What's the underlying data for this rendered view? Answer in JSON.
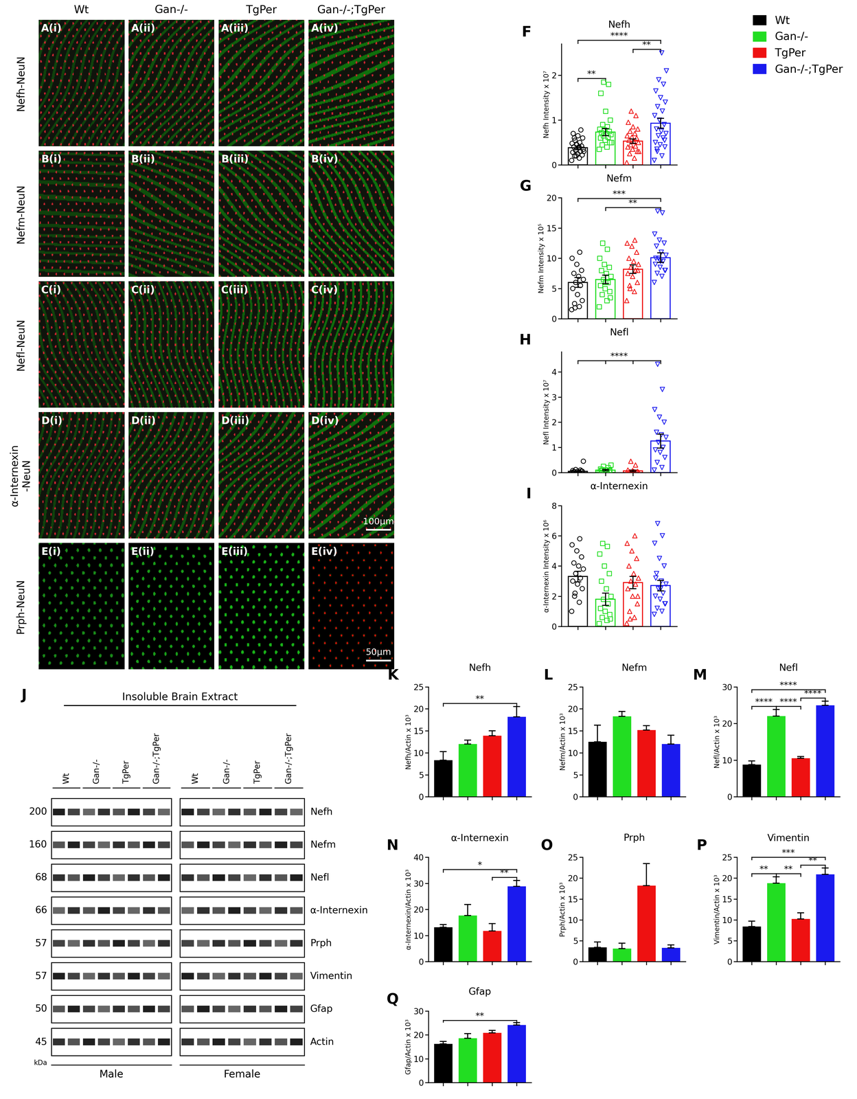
{
  "legend": "upper right",
  "legend_entries": [
    {
      "name": "Wt",
      "color": "#000000"
    },
    {
      "name": "Gan-/-",
      "color": "#22dd22"
    },
    {
      "name": "TgPer",
      "color": "#ee1111"
    },
    {
      "name": "Gan-/-;TgPer",
      "color": "#1a1aee"
    }
  ],
  "micrographs": {
    "columns": [
      "Wt",
      "Gan-/-",
      "TgPer",
      "Gan-/-;TgPer"
    ],
    "rows": [
      "Nefh-NeuN",
      "Nefm-NeuN",
      "Nefl-NeuN",
      "α-Internexin\n-NeuN",
      "Prph-NeuN"
    ],
    "panels": [
      [
        "A(i)",
        "A(ii)",
        "A(iii)",
        "A(iv)"
      ],
      [
        "B(i)",
        "B(ii)",
        "B(iii)",
        "B(iv)"
      ],
      [
        "C(i)",
        "C(ii)",
        "C(iii)",
        "C(iv)"
      ],
      [
        "D(i)",
        "D(ii)",
        "D(iii)",
        "D(iv)"
      ],
      [
        "E(i)",
        "E(ii)",
        "E(iii)",
        "E(iv)"
      ]
    ],
    "scale_bars": [
      {
        "panel": "D(iv)",
        "label": "100μm"
      },
      {
        "panel": "E(iv)",
        "label": "50μm"
      }
    ]
  },
  "blot": {
    "panel": "J",
    "title": "Insoluble Brain Extract",
    "sections": [
      {
        "name": "Male",
        "lanes": [
          {
            "label": "Wt",
            "count": 2
          },
          {
            "label": "Gan-/-",
            "count": 2
          },
          {
            "label": "TgPer",
            "count": 2
          },
          {
            "label": "Gan-/-;TgPer",
            "count": 2
          }
        ]
      },
      {
        "name": "Female",
        "lanes": [
          {
            "label": "Wt",
            "count": 2
          },
          {
            "label": "Gan-/-",
            "count": 2
          },
          {
            "label": "TgPer",
            "count": 2
          },
          {
            "label": "Gan-/-;TgPer",
            "count": 2
          }
        ]
      }
    ],
    "rows": [
      {
        "protein": "Nefh",
        "kDa": 200
      },
      {
        "protein": "Nefm",
        "kDa": 160
      },
      {
        "protein": "Nefl",
        "kDa": 68
      },
      {
        "protein": "α-Internexin",
        "kDa": 66
      },
      {
        "protein": "Prph",
        "kDa": 57
      },
      {
        "protein": "Vimentin",
        "kDa": 57
      },
      {
        "protein": "Gfap",
        "kDa": 50
      },
      {
        "protein": "Actin",
        "kDa": 45
      }
    ],
    "unit": "kDa"
  },
  "chart_data": [
    {
      "panel": "F",
      "type": "bar",
      "title": "Nefh",
      "y_label": "Nefh Intensity x 10⁷",
      "categories": [
        "Wt",
        "Gan-/-",
        "TgPer",
        "Gan-/-;TgPer"
      ],
      "colors": [
        "#000000",
        "#22dd22",
        "#ee1111",
        "#1a1aee"
      ],
      "values": [
        0.38,
        0.73,
        0.53,
        0.93
      ],
      "errors": [
        0.04,
        0.08,
        0.05,
        0.11
      ],
      "points": [
        [
          0.1,
          0.15,
          0.2,
          0.22,
          0.25,
          0.28,
          0.3,
          0.32,
          0.35,
          0.38,
          0.4,
          0.42,
          0.45,
          0.48,
          0.5,
          0.55,
          0.6,
          0.65,
          0.7,
          0.78,
          0.2,
          0.3,
          0.4,
          0.6
        ],
        [
          0.35,
          0.4,
          0.45,
          0.5,
          0.55,
          0.6,
          0.62,
          0.65,
          0.68,
          0.7,
          0.72,
          0.75,
          0.78,
          0.8,
          0.85,
          0.9,
          1.0,
          1.2,
          1.6,
          1.8,
          1.85,
          0.5
        ],
        [
          0.05,
          0.15,
          0.25,
          0.3,
          0.35,
          0.4,
          0.42,
          0.45,
          0.5,
          0.52,
          0.55,
          0.6,
          0.62,
          0.65,
          0.7,
          0.75,
          0.8,
          0.85,
          0.95,
          1.1,
          1.2,
          0.3
        ],
        [
          0.1,
          0.2,
          0.3,
          0.4,
          0.45,
          0.5,
          0.6,
          0.65,
          0.7,
          0.75,
          0.8,
          0.9,
          1.0,
          1.1,
          1.2,
          1.3,
          1.4,
          1.5,
          1.65,
          1.8,
          1.9,
          2.1,
          2.5,
          0.35,
          0.55
        ]
      ],
      "ylim": [
        0,
        2.7
      ],
      "yticks": [
        0,
        1,
        2
      ],
      "tick_labels": "y",
      "significance": [
        {
          "from": "Wt",
          "to": "Gan-/-",
          "label": "**"
        },
        {
          "from": "TgPer",
          "to": "Gan-/-;TgPer",
          "label": "**"
        },
        {
          "from": "Wt",
          "to": "Gan-/-;TgPer",
          "label": "****"
        }
      ]
    },
    {
      "panel": "G",
      "type": "bar",
      "title": "Nefm",
      "y_label": "Nefm Intensity x 10⁵",
      "categories": [
        "Wt",
        "Gan-/-",
        "TgPer",
        "Gan-/-;TgPer"
      ],
      "colors": [
        "#000000",
        "#22dd22",
        "#ee1111",
        "#1a1aee"
      ],
      "values": [
        6.0,
        6.5,
        8.2,
        10.1
      ],
      "errors": [
        0.8,
        0.7,
        0.7,
        0.8
      ],
      "points": [
        [
          1.5,
          2,
          2.5,
          3,
          4,
          5,
          5.5,
          6,
          6.5,
          7,
          7.5,
          8,
          9,
          10,
          11,
          1.8
        ],
        [
          2,
          3,
          4,
          4.5,
          5,
          5.5,
          6,
          6.5,
          7,
          7.5,
          8,
          8.5,
          9,
          10,
          11.5,
          12.5,
          3.5,
          6
        ],
        [
          3,
          4.5,
          5.5,
          6,
          7,
          7.5,
          8,
          8.5,
          9,
          9.5,
          10,
          11,
          12,
          12.5,
          13,
          5,
          8
        ],
        [
          6,
          7,
          7.5,
          8,
          8.5,
          9,
          9.5,
          10,
          10.5,
          11,
          12,
          12.5,
          13,
          14,
          17.5,
          17.8,
          8,
          9.5,
          10
        ]
      ],
      "ylim": [
        0,
        20
      ],
      "yticks": [
        0,
        5,
        10,
        15,
        20
      ],
      "tick_labels": "y",
      "significance": [
        {
          "from": "Gan-/-",
          "to": "Gan-/-;TgPer",
          "label": "**"
        },
        {
          "from": "Wt",
          "to": "Gan-/-;TgPer",
          "label": "***"
        }
      ]
    },
    {
      "panel": "H",
      "type": "bar",
      "title": "Nefl",
      "y_label": "Nefl Intensity x 10⁷",
      "categories": [
        "Wt",
        "Gan-/-",
        "TgPer",
        "Gan-/-;TgPer"
      ],
      "colors": [
        "#000000",
        "#22dd22",
        "#ee1111",
        "#1a1aee"
      ],
      "values": [
        0.05,
        0.1,
        0.07,
        1.25
      ],
      "errors": [
        0.03,
        0.03,
        0.03,
        0.28
      ],
      "points": [
        [
          0,
          0.02,
          0.03,
          0.05,
          0.05,
          0.08,
          0.1,
          0.12,
          0.45,
          0.02,
          0.04,
          0.06
        ],
        [
          0,
          0.05,
          0.08,
          0.1,
          0.12,
          0.15,
          0.2,
          0.25,
          0.3,
          0.05,
          0.1,
          0.08
        ],
        [
          0,
          0.02,
          0.03,
          0.05,
          0.08,
          0.1,
          0.3,
          0.45,
          0.02,
          0.04
        ],
        [
          0.1,
          0.2,
          0.4,
          0.6,
          0.8,
          0.9,
          1.0,
          1.2,
          1.4,
          1.5,
          1.6,
          2.0,
          2.2,
          2.5,
          3.3,
          4.3
        ]
      ],
      "ylim": [
        0,
        4.8
      ],
      "yticks": [
        0,
        1,
        2,
        3,
        4
      ],
      "tick_labels": "y",
      "significance": [
        {
          "from": [
            "Wt",
            "Gan-/-",
            "TgPer"
          ],
          "to": "Gan-/-;TgPer",
          "label": "****"
        }
      ]
    },
    {
      "panel": "I",
      "type": "bar",
      "title": "α-Internexin",
      "y_label": "α-Internexin Intensity x 10⁶",
      "categories": [
        "Wt",
        "Gan-/-",
        "TgPer",
        "Gan-/-;TgPer"
      ],
      "colors": [
        "#000000",
        "#22dd22",
        "#ee1111",
        "#1a1aee"
      ],
      "values": [
        3.3,
        1.8,
        2.9,
        2.7
      ],
      "errors": [
        0.35,
        0.4,
        0.4,
        0.35
      ],
      "points": [
        [
          1,
          1.6,
          2,
          2.5,
          2.8,
          3,
          3.2,
          3.5,
          3.8,
          4,
          4.2,
          4.6,
          5,
          5.4,
          5.8,
          2.2
        ],
        [
          0.2,
          0.4,
          0.6,
          0.8,
          1,
          1.2,
          1.5,
          1.8,
          2,
          2.5,
          3,
          3.5,
          4,
          4.8,
          5.3,
          5.5,
          0.5
        ],
        [
          0.2,
          0.6,
          1,
          1.5,
          2,
          2.5,
          2.8,
          3,
          3.2,
          3.5,
          4,
          4.5,
          5,
          5.5,
          6,
          0.5,
          2
        ],
        [
          0.8,
          1,
          1.2,
          1.5,
          1.8,
          2,
          2.2,
          2.5,
          2.8,
          3,
          3.5,
          4,
          4.5,
          5.5,
          6,
          6.8,
          1.5,
          2.5,
          3.2
        ]
      ],
      "ylim": [
        0,
        8
      ],
      "yticks": [
        0,
        2,
        4,
        6,
        8
      ],
      "tick_labels": "y"
    },
    {
      "panel": "K",
      "type": "bar",
      "title": "Nefh",
      "y_label": "Nefh/Actin x 10³",
      "categories": [
        "Wt",
        "Gan-/-",
        "TgPer",
        "Gan-/-;TgPer"
      ],
      "colors": [
        "#000000",
        "#22dd22",
        "#ee1111",
        "#1a1aee"
      ],
      "values": [
        8.3,
        12.0,
        13.9,
        18.2
      ],
      "errors": [
        2.0,
        0.9,
        1.1,
        2.3
      ],
      "ylim": [
        0,
        25
      ],
      "yticks": [
        0,
        5,
        10,
        15,
        20,
        25
      ],
      "tick_labels": "y",
      "significance": [
        {
          "from": "Wt",
          "to": "Gan-/-;TgPer",
          "label": "**"
        }
      ]
    },
    {
      "panel": "L",
      "type": "bar",
      "title": "Nefm",
      "y_label": "Nefm/Actin x 10³",
      "categories": [
        "Wt",
        "Gan-/-",
        "TgPer",
        "Gan-/-;TgPer"
      ],
      "colors": [
        "#000000",
        "#22dd22",
        "#ee1111",
        "#1a1aee"
      ],
      "values": [
        12.5,
        18.3,
        15.2,
        12.0
      ],
      "errors": [
        3.8,
        1.1,
        1.0,
        2.0
      ],
      "ylim": [
        0,
        25
      ],
      "yticks": [
        0,
        5,
        10,
        15,
        20,
        25
      ],
      "tick_labels": "y"
    },
    {
      "panel": "M",
      "type": "bar",
      "title": "Nefl",
      "y_label": "Nefl/Actin x 10³",
      "categories": [
        "Wt",
        "Gan-/-",
        "TgPer",
        "Gan-/-;TgPer"
      ],
      "colors": [
        "#000000",
        "#22dd22",
        "#ee1111",
        "#1a1aee"
      ],
      "values": [
        8.8,
        22.0,
        10.5,
        25.0
      ],
      "errors": [
        1.0,
        1.8,
        0.5,
        1.1
      ],
      "ylim": [
        0,
        30
      ],
      "yticks": [
        0,
        10,
        20,
        30
      ],
      "tick_labels": "y",
      "significance": [
        {
          "from": "Wt",
          "to": "Gan-/-",
          "label": "****"
        },
        {
          "from": "Gan-/-",
          "to": "TgPer",
          "label": "****"
        },
        {
          "from": "TgPer",
          "to": "Gan-/-;TgPer",
          "label": "****"
        },
        {
          "from": "Wt",
          "to": "Gan-/-;TgPer",
          "label": "****"
        }
      ]
    },
    {
      "panel": "N",
      "type": "bar",
      "title": "α-Internexin",
      "y_label": "α-Internexin/Actin x 10³",
      "categories": [
        "Wt",
        "Gan-/-",
        "TgPer",
        "Gan-/-;TgPer"
      ],
      "colors": [
        "#000000",
        "#22dd22",
        "#ee1111",
        "#1a1aee"
      ],
      "values": [
        13.2,
        17.7,
        11.8,
        28.8
      ],
      "errors": [
        1.0,
        4.2,
        2.8,
        2.3
      ],
      "ylim": [
        0,
        40
      ],
      "yticks": [
        0,
        10,
        20,
        30,
        40
      ],
      "tick_labels": "y",
      "significance": [
        {
          "from": "TgPer",
          "to": "Gan-/-;TgPer",
          "label": "**"
        },
        {
          "from": "Wt",
          "to": "Gan-/-;TgPer",
          "label": "*"
        }
      ]
    },
    {
      "panel": "O",
      "type": "bar",
      "title": "Prph",
      "y_label": "Prph/Actin x 10³",
      "categories": [
        "Wt",
        "Gan-/-",
        "TgPer",
        "Gan-/-;TgPer"
      ],
      "colors": [
        "#000000",
        "#22dd22",
        "#ee1111",
        "#1a1aee"
      ],
      "values": [
        3.4,
        3.1,
        18.2,
        3.3
      ],
      "errors": [
        1.3,
        1.3,
        5.3,
        0.7
      ],
      "ylim": [
        0,
        25
      ],
      "yticks": [
        0,
        5,
        10,
        15,
        20,
        25
      ],
      "tick_labels": "y"
    },
    {
      "panel": "P",
      "type": "bar",
      "title": "Vimentin",
      "y_label": "Vimentin/Actin x 10³",
      "categories": [
        "Wt",
        "Gan-/-",
        "TgPer",
        "Gan-/-;TgPer"
      ],
      "colors": [
        "#000000",
        "#22dd22",
        "#ee1111",
        "#1a1aee"
      ],
      "values": [
        8.4,
        18.8,
        10.2,
        20.9
      ],
      "errors": [
        1.3,
        1.5,
        1.5,
        1.5
      ],
      "ylim": [
        0,
        25
      ],
      "yticks": [
        0,
        5,
        10,
        15,
        20,
        25
      ],
      "tick_labels": "y",
      "significance": [
        {
          "from": "Wt",
          "to": "Gan-/-",
          "label": "**"
        },
        {
          "from": "Gan-/-",
          "to": "TgPer",
          "label": "**"
        },
        {
          "from": "TgPer",
          "to": "Gan-/-;TgPer",
          "label": "**"
        },
        {
          "from": "Wt",
          "to": "Gan-/-;TgPer",
          "label": "***"
        }
      ]
    },
    {
      "panel": "Q",
      "type": "bar",
      "title": "Gfap",
      "y_label": "Gfap/Actin x 10³",
      "categories": [
        "Wt",
        "Gan-/-",
        "TgPer",
        "Gan-/-;TgPer"
      ],
      "colors": [
        "#000000",
        "#22dd22",
        "#ee1111",
        "#1a1aee"
      ],
      "values": [
        16.2,
        18.6,
        20.9,
        24.1
      ],
      "errors": [
        1.1,
        1.9,
        1.0,
        1.1
      ],
      "ylim": [
        0,
        30
      ],
      "yticks": [
        0,
        10,
        20,
        30
      ],
      "tick_labels": "y",
      "significance": [
        {
          "from": "Wt",
          "to": "Gan-/-;TgPer",
          "label": "**"
        }
      ]
    }
  ]
}
